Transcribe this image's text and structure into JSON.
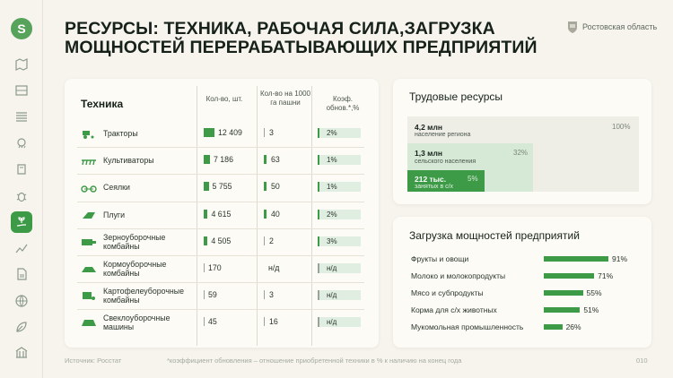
{
  "logo": "S",
  "title_line1": "РЕСУРСЫ: ТЕХНИКА, РАБОЧАЯ СИЛА,ЗАГРУЗКА",
  "title_line2": "МОЩНОСТЕЙ ПЕРЕРАБАТЫВАЮЩИХ ПРЕДПРИЯТИЙ",
  "region": "Ростовская область",
  "sidebar_icons": [
    "map-icon",
    "tractor-icon",
    "field-icon",
    "weather-icon",
    "fertilizer-icon",
    "bug-icon",
    "hand-plant-icon",
    "chart-icon",
    "document-icon",
    "globe-icon",
    "leaf-icon",
    "building-icon"
  ],
  "table": {
    "header_main": "Техника",
    "col1": "Кол-во, шт.",
    "col2": "Кол-во на 1000 га пашни",
    "col3": "Коэф. обнов.*,%",
    "rows": [
      {
        "name": "Тракторы",
        "count": "12 409",
        "count_share": 1.0,
        "per1000": "3",
        "renew": "2%"
      },
      {
        "name": "Культиваторы",
        "count": "7 186",
        "count_share": 0.58,
        "per1000": "63",
        "renew": "1%"
      },
      {
        "name": "Сеялки",
        "count": "5 755",
        "count_share": 0.46,
        "per1000": "50",
        "renew": "1%"
      },
      {
        "name": "Плуги",
        "count": "4 615",
        "count_share": 0.37,
        "per1000": "40",
        "renew": "2%"
      },
      {
        "name": "Зерноуборочные комбайны",
        "count": "4 505",
        "count_share": 0.36,
        "per1000": "2",
        "renew": "3%"
      },
      {
        "name": "Кормоуборочные комбайны",
        "count": "170",
        "count_share": 0.0,
        "per1000": "н/д",
        "renew": "н/д"
      },
      {
        "name": "Картофелеуборочные комбайны",
        "count": "59",
        "count_share": 0.0,
        "per1000": "3",
        "renew": "н/д"
      },
      {
        "name": "Свеклоуборочные машины",
        "count": "45",
        "count_share": 0.0,
        "per1000": "16",
        "renew": "н/д"
      }
    ]
  },
  "labor": {
    "title": "Трудовые ресурсы",
    "items": [
      {
        "value": "4,2 млн",
        "label": "население региона",
        "pct": "100%"
      },
      {
        "value": "1,3 млн",
        "label": "сельского населения",
        "pct": "32%"
      },
      {
        "value": "212 тыс.",
        "label": "занятых в с/х",
        "pct": "5%"
      }
    ]
  },
  "load": {
    "title": "Загрузка мощностей предприятий",
    "items": [
      {
        "name": "Фрукты и овощи",
        "value": 91,
        "label": "91%"
      },
      {
        "name": "Молоко и молокопродукты",
        "value": 71,
        "label": "71%"
      },
      {
        "name": "Мясо и субпродукты",
        "value": 55,
        "label": "55%"
      },
      {
        "name": "Корма для с/х животных",
        "value": 51,
        "label": "51%"
      },
      {
        "name": "Мукомольная промышленность",
        "value": 26,
        "label": "26%"
      }
    ]
  },
  "footer": {
    "source": "Источник: Росстат",
    "note": "*коэффициент обновления – отношение приобретенной техники в % к наличию на конец года",
    "page": "010"
  }
}
